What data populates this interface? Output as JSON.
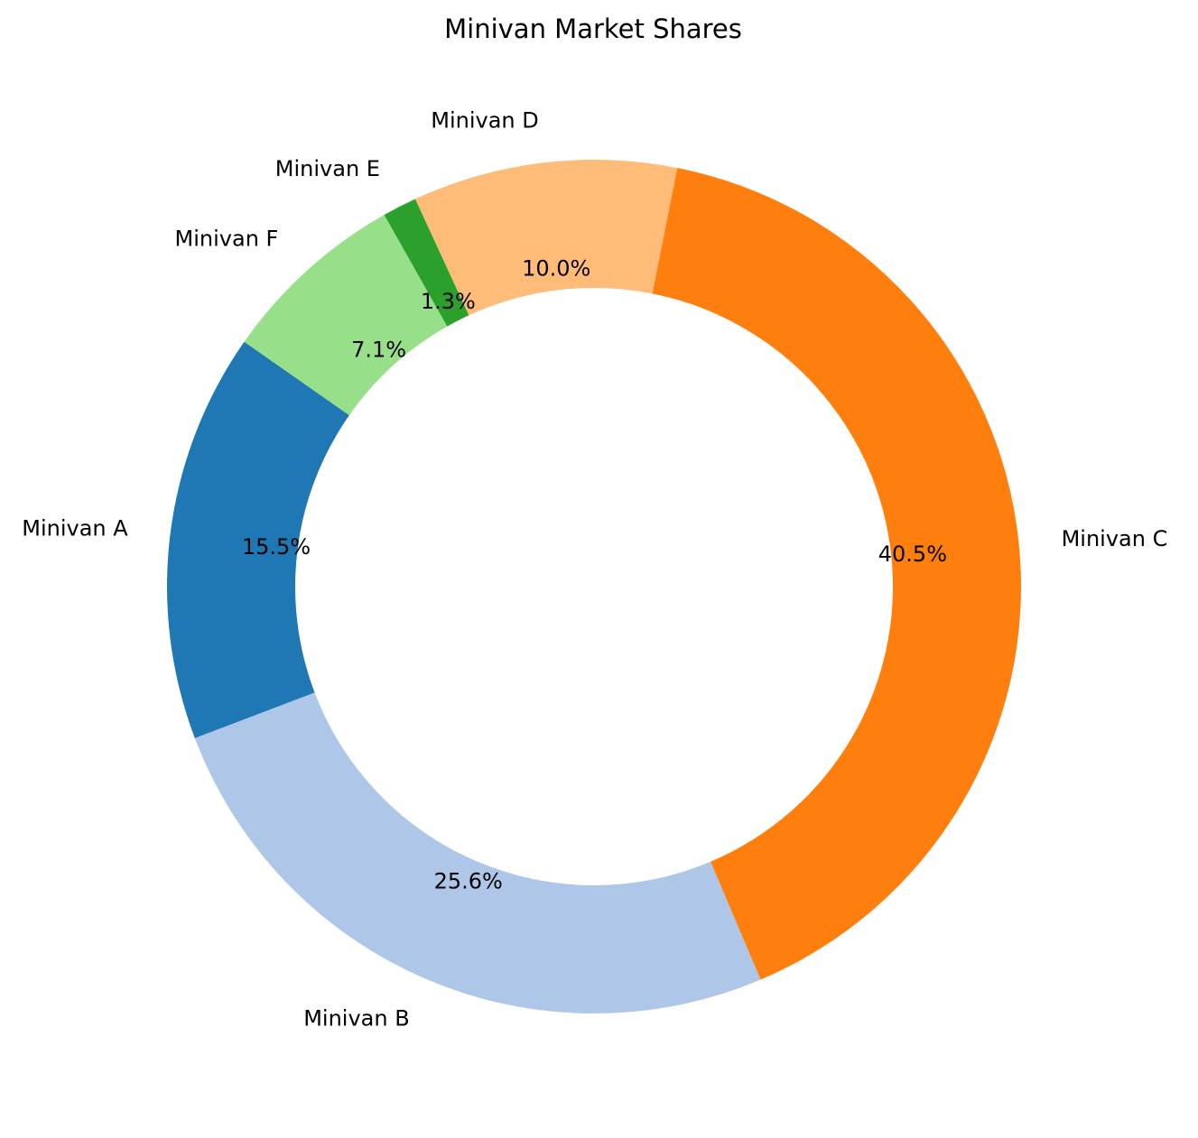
{
  "chart_data": {
    "type": "pie",
    "variant": "donut",
    "title": "Minivan Market Shares",
    "categories": [
      "Minivan A",
      "Minivan B",
      "Minivan C",
      "Minivan D",
      "Minivan E",
      "Minivan F"
    ],
    "values": [
      15.5,
      25.6,
      40.5,
      10.0,
      1.3,
      7.1
    ],
    "percent_labels": [
      "15.5%",
      "25.6%",
      "40.5%",
      "10.0%",
      "1.3%",
      "7.1%"
    ],
    "colors": [
      "#1f77b4",
      "#aec7e8",
      "#ff7f0e",
      "#ffbb78",
      "#2ca02c",
      "#98df8a"
    ],
    "start_angle_deg": 145,
    "direction": "counterclockwise",
    "legend": "none"
  }
}
